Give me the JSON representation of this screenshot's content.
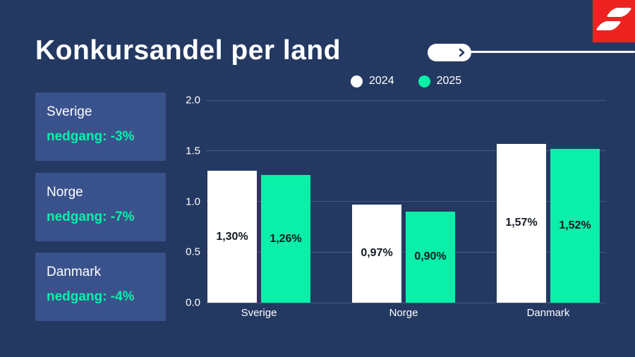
{
  "header": {
    "title": "Konkursandel per land"
  },
  "legend": {
    "items": [
      {
        "label": "2024",
        "color": "#ffffff"
      },
      {
        "label": "2025",
        "color": "#0af0a8"
      }
    ]
  },
  "summary_cards": [
    {
      "country": "Sverige",
      "change": "nedgang: -3%"
    },
    {
      "country": "Norge",
      "change": "nedgang: -7%"
    },
    {
      "country": "Danmark",
      "change": "nedgang: -4%"
    }
  ],
  "colors": {
    "background": "#243962",
    "card": "#3a528c",
    "accent_green": "#0af0a8",
    "logo_red": "#ed2322",
    "bar_2024": "#ffffff",
    "bar_2025": "#0af0a8",
    "bar_label_text": "#151a24"
  },
  "chart_data": {
    "type": "bar",
    "title": "Konkursandel per land",
    "categories": [
      "Sverige",
      "Norge",
      "Danmark"
    ],
    "series": [
      {
        "name": "2024",
        "color": "#ffffff",
        "values": [
          1.3,
          0.97,
          1.57
        ],
        "data_labels": [
          "1,30%",
          "0,97%",
          "1,57%"
        ]
      },
      {
        "name": "2025",
        "color": "#0af0a8",
        "values": [
          1.26,
          0.9,
          1.52
        ],
        "data_labels": [
          "1,26%",
          "0,90%",
          "1,52%"
        ]
      }
    ],
    "xlabel": "",
    "ylabel": "",
    "ylim": [
      0,
      2.0
    ],
    "yticks": [
      0.0,
      0.5,
      1.0,
      1.5,
      2.0
    ],
    "ytick_labels": [
      "0.0",
      "0.5",
      "1.0",
      "1.5",
      "2.0"
    ],
    "grid": true,
    "legend_position": "top-center"
  }
}
